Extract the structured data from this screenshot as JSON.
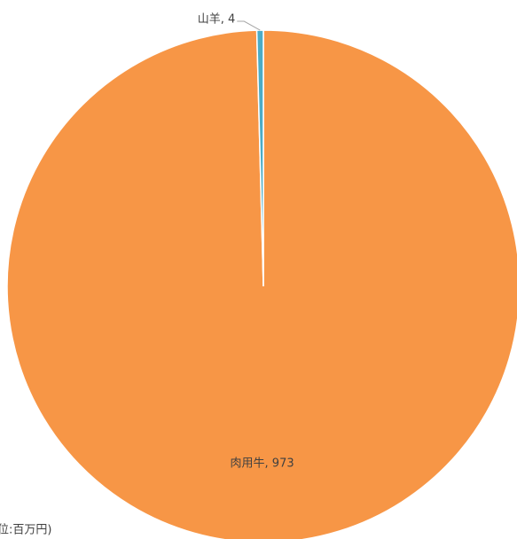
{
  "chart_data": {
    "type": "pie",
    "categories": [
      "肉用牛",
      "山羊"
    ],
    "values": [
      973,
      4
    ],
    "value_labels": [
      "肉用牛, 973",
      "山羊, 4"
    ],
    "colors": [
      "#f79646",
      "#4bacc6"
    ],
    "note": "位:百万円)"
  }
}
